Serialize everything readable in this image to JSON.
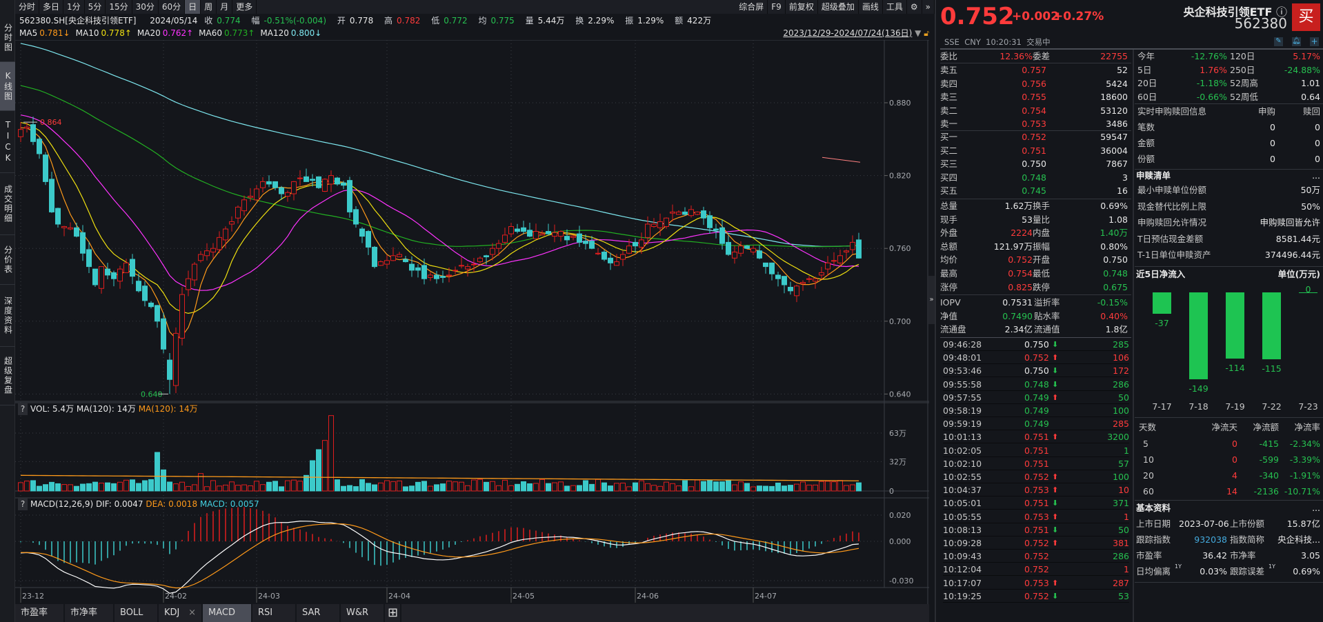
{
  "toolbar": {
    "periods": [
      "分时",
      "多日",
      "1分",
      "5分",
      "15分",
      "30分",
      "60分",
      "日",
      "周",
      "月",
      "更多"
    ],
    "active_period": "日",
    "right_items": [
      "综合屏",
      "F9",
      "前复权",
      "超级叠加",
      "画线",
      "工具"
    ]
  },
  "left_nav": [
    "分时图",
    "K线图",
    "TICK",
    "成交明细",
    "分价表",
    "深度资料",
    "超级复盘"
  ],
  "left_nav_active": "K线图",
  "info_line": {
    "symbol": "562380.SH[央企科技引领ETF]",
    "date": "2024/05/14",
    "close_label": "收",
    "close": "0.774",
    "change_label": "幅",
    "change": "-0.51%(-0.004)",
    "open_label": "开",
    "open": "0.778",
    "high_label": "高",
    "high": "0.782",
    "low_label": "低",
    "low": "0.772",
    "avg_label": "均",
    "avg": "0.775",
    "vol_label": "量",
    "vol": "5.44万",
    "turnover_label": "换",
    "turnover": "2.29%",
    "amp_label": "振",
    "amp": "1.29%",
    "amount_label": "额",
    "amount": "422万"
  },
  "ma_line": [
    {
      "name": "MA5",
      "value": "0.781↓",
      "color": "#ff9a1a"
    },
    {
      "name": "MA10",
      "value": "0.778↑",
      "color": "#f0e010"
    },
    {
      "name": "MA20",
      "value": "0.762↑",
      "color": "#ff33ff"
    },
    {
      "name": "MA60",
      "value": "0.773↑",
      "color": "#22b022"
    },
    {
      "name": "MA120",
      "value": "0.800↓",
      "color": "#7ee8f0"
    }
  ],
  "date_range": "2023/12/29-2024/07/24(136日)",
  "chart_data": {
    "type": "candlestick",
    "price_axis": [
      "0.880",
      "0.820",
      "0.760",
      "0.700",
      "0.640"
    ],
    "price_range": [
      0.64,
      0.88
    ],
    "max_label": "0.864",
    "min_label": "0.640",
    "date_labels": [
      {
        "label": "23-12",
        "index": 0
      },
      {
        "label": "24-02",
        "index": 23
      },
      {
        "label": "24-03",
        "index": 38
      },
      {
        "label": "24-04",
        "index": 59
      },
      {
        "label": "24-05",
        "index": 79
      },
      {
        "label": "24-06",
        "index": 99
      },
      {
        "label": "24-07",
        "index": 118
      }
    ],
    "count": 136,
    "close_keypoints": [
      [
        0,
        0.858
      ],
      [
        1,
        0.86
      ],
      [
        2,
        0.848
      ],
      [
        3,
        0.838
      ],
      [
        4,
        0.815
      ],
      [
        5,
        0.79
      ],
      [
        7,
        0.778
      ],
      [
        9,
        0.77
      ],
      [
        11,
        0.745
      ],
      [
        12,
        0.73
      ],
      [
        13,
        0.745
      ],
      [
        15,
        0.735
      ],
      [
        17,
        0.748
      ],
      [
        19,
        0.725
      ],
      [
        21,
        0.712
      ],
      [
        22,
        0.7
      ],
      [
        24,
        0.65
      ],
      [
        25,
        0.69
      ],
      [
        26,
        0.722
      ],
      [
        27,
        0.735
      ],
      [
        29,
        0.755
      ],
      [
        31,
        0.76
      ],
      [
        34,
        0.782
      ],
      [
        36,
        0.8
      ],
      [
        39,
        0.815
      ],
      [
        42,
        0.805
      ],
      [
        45,
        0.818
      ],
      [
        48,
        0.81
      ],
      [
        50,
        0.82
      ],
      [
        52,
        0.812
      ],
      [
        53,
        0.79
      ],
      [
        55,
        0.77
      ],
      [
        57,
        0.745
      ],
      [
        59,
        0.75
      ],
      [
        61,
        0.755
      ],
      [
        63,
        0.742
      ],
      [
        65,
        0.735
      ],
      [
        67,
        0.735
      ],
      [
        70,
        0.742
      ],
      [
        72,
        0.745
      ],
      [
        74,
        0.752
      ],
      [
        76,
        0.76
      ],
      [
        79,
        0.778
      ],
      [
        81,
        0.774
      ],
      [
        82,
        0.77
      ],
      [
        85,
        0.772
      ],
      [
        89,
        0.77
      ],
      [
        92,
        0.76
      ],
      [
        95,
        0.748
      ],
      [
        97,
        0.755
      ],
      [
        99,
        0.762
      ],
      [
        101,
        0.78
      ],
      [
        103,
        0.782
      ],
      [
        105,
        0.79
      ],
      [
        107,
        0.788
      ],
      [
        109,
        0.79
      ],
      [
        112,
        0.775
      ],
      [
        114,
        0.755
      ],
      [
        116,
        0.762
      ],
      [
        118,
        0.76
      ],
      [
        120,
        0.745
      ],
      [
        122,
        0.735
      ],
      [
        124,
        0.725
      ],
      [
        126,
        0.732
      ],
      [
        127,
        0.735
      ],
      [
        129,
        0.74
      ],
      [
        131,
        0.75
      ],
      [
        133,
        0.758
      ],
      [
        134,
        0.765
      ],
      [
        135,
        0.752
      ]
    ],
    "ma_colors": {
      "ma5": "#ff9a1a",
      "ma10": "#f0e010",
      "ma20": "#ff33ff",
      "ma60": "#22b022",
      "ma120": "#7ee8f0"
    },
    "up_color": "#e01e1e",
    "down_color": "#3ccaca",
    "volume": {
      "header": {
        "label": "VOL: 5.4万",
        "ma1": "MA(120): 14万",
        "ma2": "MA(120): 14万"
      },
      "axis": [
        "63万",
        "32万",
        "0"
      ],
      "max": 630000,
      "typical": 90000,
      "spikes": [
        [
          22,
          420000
        ],
        [
          23,
          230000
        ],
        [
          29,
          190000
        ],
        [
          46,
          170000
        ],
        [
          47,
          330000
        ],
        [
          48,
          450000
        ],
        [
          49,
          550000
        ],
        [
          50,
          820000
        ]
      ]
    },
    "macd": {
      "header": {
        "label": "MACD(12,26,9)",
        "dif": "DIF: 0.0047",
        "dea": "DEA: 0.0018",
        "macd": "MACD: 0.0057"
      },
      "axis": [
        "0.020",
        "0.000",
        "-0.030"
      ],
      "range": [
        -0.03,
        0.02
      ]
    }
  },
  "bottom_tabs": [
    "市盈率",
    "市净率",
    "BOLL",
    "KDJ",
    "MACD",
    "RSI",
    "SAR",
    "W&R"
  ],
  "bottom_tab_active": "MACD",
  "quote": {
    "price": "0.752",
    "change": "+0.002",
    "change_pct": "+0.27%",
    "name": "央企科技引领ETF",
    "code": "562380",
    "buy_label": "买",
    "exchange": "SSE",
    "currency": "CNY",
    "time": "10:20:31",
    "status": "交易中"
  },
  "order_book": {
    "weibi_label": "委比",
    "weibi": "12.36%",
    "weicha_label": "委差",
    "weicha": "22755",
    "asks": [
      {
        "label": "卖五",
        "price": "0.757",
        "vol": "52",
        "color": "red"
      },
      {
        "label": "卖四",
        "price": "0.756",
        "vol": "5424",
        "color": "red"
      },
      {
        "label": "卖三",
        "price": "0.755",
        "vol": "18600",
        "color": "red"
      },
      {
        "label": "卖二",
        "price": "0.754",
        "vol": "53120",
        "color": "red"
      },
      {
        "label": "卖一",
        "price": "0.753",
        "vol": "3486",
        "color": "red"
      }
    ],
    "bids": [
      {
        "label": "买一",
        "price": "0.752",
        "vol": "59547",
        "color": "red"
      },
      {
        "label": "买二",
        "price": "0.751",
        "vol": "36004",
        "color": "red"
      },
      {
        "label": "买三",
        "price": "0.750",
        "vol": "7867",
        "color": "white"
      },
      {
        "label": "买四",
        "price": "0.748",
        "vol": "3",
        "color": "green"
      },
      {
        "label": "买五",
        "price": "0.745",
        "vol": "16",
        "color": "green"
      }
    ]
  },
  "stats": [
    [
      {
        "l": "总量",
        "v": "1.62万",
        "c": "white"
      },
      {
        "l": "换手",
        "v": "0.69%",
        "c": "white"
      }
    ],
    [
      {
        "l": "现手",
        "v": "53",
        "c": "white"
      },
      {
        "l": "量比",
        "v": "1.08",
        "c": "white"
      }
    ],
    [
      {
        "l": "外盘",
        "v": "2224",
        "c": "red"
      },
      {
        "l": "内盘",
        "v": "1.40万",
        "c": "green"
      }
    ],
    [
      {
        "l": "总额",
        "v": "121.97万",
        "c": "white"
      },
      {
        "l": "振幅",
        "v": "0.80%",
        "c": "white"
      }
    ],
    [
      {
        "l": "均价",
        "v": "0.752",
        "c": "red"
      },
      {
        "l": "开盘",
        "v": "0.750",
        "c": "white"
      }
    ],
    [
      {
        "l": "最高",
        "v": "0.754",
        "c": "red"
      },
      {
        "l": "最低",
        "v": "0.748",
        "c": "green"
      }
    ],
    [
      {
        "l": "涨停",
        "v": "0.825",
        "c": "red"
      },
      {
        "l": "跌停",
        "v": "0.675",
        "c": "green"
      }
    ]
  ],
  "etf_stats": [
    [
      {
        "l": "IOPV",
        "v": "0.7531",
        "c": "white"
      },
      {
        "l": "溢折率",
        "v": "-0.15%",
        "c": "green"
      }
    ],
    [
      {
        "l": "净值",
        "v": "0.7490",
        "c": "green"
      },
      {
        "l": "贴水率",
        "v": "0.40%",
        "c": "red"
      }
    ],
    [
      {
        "l": "流通盘",
        "v": "2.34亿",
        "c": "white"
      },
      {
        "l": "流通值",
        "v": "1.8亿",
        "c": "white"
      }
    ]
  ],
  "ticks": [
    {
      "t": "09:46:28",
      "p": "0.750",
      "pc": "white",
      "a": "down",
      "v": "285",
      "vc": "green"
    },
    {
      "t": "09:48:01",
      "p": "0.752",
      "pc": "red",
      "a": "up",
      "v": "106",
      "vc": "red"
    },
    {
      "t": "09:53:46",
      "p": "0.750",
      "pc": "white",
      "a": "down",
      "v": "172",
      "vc": "red"
    },
    {
      "t": "09:55:58",
      "p": "0.748",
      "pc": "green",
      "a": "down",
      "v": "286",
      "vc": "green"
    },
    {
      "t": "09:57:55",
      "p": "0.749",
      "pc": "green",
      "a": "up",
      "v": "50",
      "vc": "green"
    },
    {
      "t": "09:58:19",
      "p": "0.749",
      "pc": "green",
      "a": "",
      "v": "100",
      "vc": "green"
    },
    {
      "t": "09:59:19",
      "p": "0.749",
      "pc": "green",
      "a": "",
      "v": "285",
      "vc": "red"
    },
    {
      "t": "10:01:13",
      "p": "0.751",
      "pc": "red",
      "a": "up",
      "v": "3200",
      "vc": "green"
    },
    {
      "t": "10:02:05",
      "p": "0.751",
      "pc": "red",
      "a": "",
      "v": "1",
      "vc": "green"
    },
    {
      "t": "10:02:10",
      "p": "0.751",
      "pc": "red",
      "a": "",
      "v": "57",
      "vc": "green"
    },
    {
      "t": "10:02:55",
      "p": "0.752",
      "pc": "red",
      "a": "up",
      "v": "100",
      "vc": "green"
    },
    {
      "t": "10:04:37",
      "p": "0.753",
      "pc": "red",
      "a": "up",
      "v": "10",
      "vc": "red"
    },
    {
      "t": "10:05:01",
      "p": "0.751",
      "pc": "red",
      "a": "down",
      "v": "371",
      "vc": "green"
    },
    {
      "t": "10:05:55",
      "p": "0.753",
      "pc": "red",
      "a": "up",
      "v": "1",
      "vc": "red"
    },
    {
      "t": "10:08:13",
      "p": "0.751",
      "pc": "red",
      "a": "down",
      "v": "50",
      "vc": "green"
    },
    {
      "t": "10:09:28",
      "p": "0.752",
      "pc": "red",
      "a": "up",
      "v": "381",
      "vc": "red"
    },
    {
      "t": "10:09:43",
      "p": "0.752",
      "pc": "red",
      "a": "",
      "v": "286",
      "vc": "green"
    },
    {
      "t": "10:12:04",
      "p": "0.752",
      "pc": "red",
      "a": "",
      "v": "1",
      "vc": "red"
    },
    {
      "t": "10:17:07",
      "p": "0.753",
      "pc": "red",
      "a": "up",
      "v": "287",
      "vc": "red"
    },
    {
      "t": "10:19:25",
      "p": "0.752",
      "pc": "red",
      "a": "down",
      "v": "53",
      "vc": "green"
    }
  ],
  "returns": [
    [
      {
        "l": "今年",
        "v": "-12.76%",
        "c": "green"
      },
      {
        "l": "120日",
        "v": "5.17%",
        "c": "red"
      }
    ],
    [
      {
        "l": "5日",
        "v": "1.76%",
        "c": "red"
      },
      {
        "l": "250日",
        "v": "-24.88%",
        "c": "green"
      }
    ],
    [
      {
        "l": "20日",
        "v": "-1.18%",
        "c": "green"
      },
      {
        "l": "52周高",
        "v": "1.01",
        "c": "white"
      }
    ],
    [
      {
        "l": "60日",
        "v": "-0.66%",
        "c": "green"
      },
      {
        "l": "52周低",
        "v": "0.64",
        "c": "white"
      }
    ]
  ],
  "creation": {
    "title": "实时申购赎回信息",
    "col1": "申购",
    "col2": "赎回",
    "rows": [
      {
        "l": "笔数",
        "a": "0",
        "b": "0"
      },
      {
        "l": "金额",
        "a": "0",
        "b": "0"
      },
      {
        "l": "份额",
        "a": "0",
        "b": "0"
      }
    ]
  },
  "pcf": {
    "title": "申赎清单",
    "more": "...",
    "rows": [
      {
        "l": "最小申赎单位份额",
        "v": "50万"
      },
      {
        "l": "现金替代比例上限",
        "v": "50%"
      },
      {
        "l": "申购赎回允许情况",
        "v": "申购赎回皆允许"
      },
      {
        "l": "T日预估现金差额",
        "v": "8581.44元"
      },
      {
        "l": "T-1日单位申赎资产",
        "v": "374496.44元"
      }
    ]
  },
  "net_inflow": {
    "title": "近5日净流入",
    "unit": "单位(万元)",
    "bars": [
      {
        "date": "7-17",
        "value": -37
      },
      {
        "date": "7-18",
        "value": -149
      },
      {
        "date": "7-19",
        "value": -114
      },
      {
        "date": "7-22",
        "value": -115
      },
      {
        "date": "7-23",
        "value": 0
      }
    ],
    "headers": [
      "天数",
      "净流天",
      "净流额",
      "净流率"
    ],
    "rows": [
      {
        "d": "5",
        "days": "0",
        "amt": "-415",
        "rate": "-2.34%"
      },
      {
        "d": "10",
        "days": "0",
        "amt": "-599",
        "rate": "-3.39%"
      },
      {
        "d": "20",
        "days": "4",
        "amt": "-340",
        "rate": "-1.91%"
      },
      {
        "d": "60",
        "days": "14",
        "amt": "-2136",
        "rate": "-10.71%"
      }
    ]
  },
  "basic": {
    "title": "基本资料",
    "more": "...",
    "rows": [
      [
        {
          "l": "上市日期",
          "v": "2023-07-06",
          "c": "white"
        },
        {
          "l": "上市份额",
          "v": "15.87亿",
          "c": "white"
        }
      ],
      [
        {
          "l": "跟踪指数",
          "v": "932038",
          "c": "blue"
        },
        {
          "l": "指数简称",
          "v": "央企科技...",
          "c": "white"
        }
      ],
      [
        {
          "l": "市盈率",
          "v": "36.42",
          "c": "white"
        },
        {
          "l": "市净率",
          "v": "3.05",
          "c": "white"
        }
      ],
      [
        {
          "l": "日均偏离",
          "sup": "1Y",
          "v": "0.03%",
          "c": "white"
        },
        {
          "l": "跟踪误差",
          "sup": "1Y",
          "v": "0.69%",
          "c": "white"
        }
      ]
    ]
  }
}
